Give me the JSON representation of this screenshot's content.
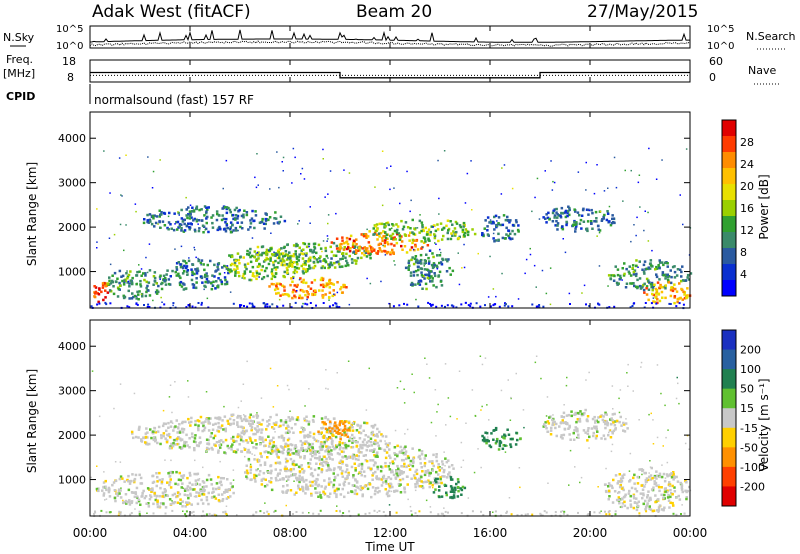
{
  "header": {
    "station": "Adak West (fitACF)",
    "beam": "Beam 20",
    "date": "27/May/2015"
  },
  "noise_panel": {
    "left_label": "N.Sky",
    "right_label": "N.Search",
    "left_ticks": [
      "10^5",
      "10^0"
    ],
    "right_ticks": [
      "10^5",
      "10^0"
    ]
  },
  "freq_panel": {
    "left_label_1": "Freq.",
    "left_label_2": "[MHz]",
    "left_ticks": [
      "18",
      "8"
    ],
    "right_label": "Nave",
    "right_ticks": [
      "60",
      "0"
    ]
  },
  "cpid": {
    "label": "CPID",
    "text": "normalsound (fast) 157 RF"
  },
  "x_axis": {
    "ticks": [
      "00:00",
      "04:00",
      "08:00",
      "12:00",
      "16:00",
      "20:00",
      "00:00"
    ],
    "label": "Time UT"
  },
  "power_panel": {
    "ylabel": "Slant Range [km]",
    "yticks": [
      "4000",
      "3000",
      "2000",
      "1000"
    ],
    "colorbar_label": "Power [dB]",
    "colorbar_ticks": [
      "28",
      "24",
      "20",
      "16",
      "12",
      "8",
      "4"
    ],
    "colorbar_colors": [
      "#e00000",
      "#ff3b00",
      "#ff8c00",
      "#ffc000",
      "#e8e000",
      "#9ad000",
      "#30a030",
      "#3a8a6a",
      "#2a5aa0",
      "#0a30d0",
      "#0000ff"
    ]
  },
  "velocity_panel": {
    "ylabel": "Slant Range [km]",
    "yticks": [
      "4000",
      "3000",
      "2000",
      "1000"
    ],
    "colorbar_label": "Velocity [m s⁻¹]",
    "colorbar_ticks": [
      "200",
      "100",
      "50",
      "15",
      "-15",
      "-50",
      "-100",
      "-200"
    ],
    "colorbar_colors": [
      "#1a30c0",
      "#2860a0",
      "#208050",
      "#60c030",
      "#c8c8c8",
      "#ffd000",
      "#ff9000",
      "#ff4000",
      "#e00000"
    ]
  },
  "chart_data": [
    {
      "type": "line",
      "title": "N.Sky / N.Search",
      "xlabel": "",
      "ylabel": "",
      "x_range_hours": [
        0,
        24
      ],
      "scale": "log",
      "ylim": [
        1,
        100000
      ]
    },
    {
      "type": "line",
      "title": "Freq. [MHz] / Nave",
      "x_range_hours": [
        0,
        24
      ],
      "ylim_left": [
        8,
        18
      ],
      "ylim_right": [
        0,
        60
      ],
      "series": [
        {
          "name": "Freq.",
          "x": [
            0,
            10,
            10,
            18,
            18,
            24
          ],
          "values": [
            12.3,
            12.3,
            9.9,
            9.9,
            12.3,
            12.3
          ]
        },
        {
          "name": "Nave",
          "x": [
            0,
            24
          ],
          "values": [
            18,
            18
          ]
        }
      ]
    },
    {
      "type": "heatmap",
      "title": "Power [dB]",
      "xlabel": "Time UT",
      "ylabel": "Slant Range [km]",
      "x_range_hours": [
        0,
        24
      ],
      "ylim": [
        180,
        4590
      ],
      "legend": "right",
      "grid": false,
      "regions": [
        {
          "t0": 0.0,
          "t1": 0.8,
          "r0": 300,
          "r1": 800,
          "level": 28
        },
        {
          "t0": 0.5,
          "t1": 3.0,
          "r0": 400,
          "r1": 1100,
          "level": 10
        },
        {
          "t0": 2.8,
          "t1": 5.7,
          "r0": 600,
          "r1": 1300,
          "level": 8
        },
        {
          "t0": 2.0,
          "t1": 7.8,
          "r0": 1900,
          "r1": 2500,
          "level": 7
        },
        {
          "t0": 5.3,
          "t1": 8.9,
          "r0": 800,
          "r1": 1600,
          "level": 14
        },
        {
          "t0": 7.0,
          "t1": 10.3,
          "r0": 400,
          "r1": 900,
          "level": 22
        },
        {
          "t0": 6.8,
          "t1": 11.3,
          "r0": 1100,
          "r1": 1700,
          "level": 12
        },
        {
          "t0": 9.6,
          "t1": 13.5,
          "r0": 1400,
          "r1": 1900,
          "level": 24
        },
        {
          "t0": 12.5,
          "t1": 14.5,
          "r0": 600,
          "r1": 1500,
          "level": 9
        },
        {
          "t0": 11.0,
          "t1": 15.5,
          "r0": 1700,
          "r1": 2200,
          "level": 14
        },
        {
          "t0": 15.5,
          "t1": 17.2,
          "r0": 1700,
          "r1": 2300,
          "level": 7
        },
        {
          "t0": 18.0,
          "t1": 21.0,
          "r0": 1900,
          "r1": 2500,
          "level": 7
        },
        {
          "t0": 20.7,
          "t1": 24.0,
          "r0": 600,
          "r1": 1300,
          "level": 10
        },
        {
          "t0": 22.0,
          "t1": 24.0,
          "r0": 300,
          "r1": 800,
          "level": 22
        }
      ]
    },
    {
      "type": "heatmap",
      "title": "Velocity [m s⁻¹]",
      "xlabel": "Time UT",
      "ylabel": "Slant Range [km]",
      "x_range_hours": [
        0,
        24
      ],
      "ylim": [
        180,
        4590
      ],
      "legend": "right",
      "grid": false,
      "regions": [
        {
          "t0": 0.2,
          "t1": 6.0,
          "r0": 400,
          "r1": 1200,
          "level": 0
        },
        {
          "t0": 1.5,
          "t1": 12.0,
          "r0": 1600,
          "r1": 2500,
          "level": 0
        },
        {
          "t0": 6.0,
          "t1": 14.5,
          "r0": 600,
          "r1": 1900,
          "level": 0
        },
        {
          "t0": 9.0,
          "t1": 10.5,
          "r0": 1900,
          "r1": 2400,
          "level": -60
        },
        {
          "t0": 13.5,
          "t1": 15.0,
          "r0": 600,
          "r1": 1100,
          "level": 40
        },
        {
          "t0": 15.6,
          "t1": 17.2,
          "r0": 1700,
          "r1": 2200,
          "level": 40
        },
        {
          "t0": 18.0,
          "t1": 21.5,
          "r0": 1900,
          "r1": 2600,
          "level": 0
        },
        {
          "t0": 20.5,
          "t1": 24.0,
          "r0": 300,
          "r1": 1300,
          "level": 0
        }
      ]
    }
  ]
}
